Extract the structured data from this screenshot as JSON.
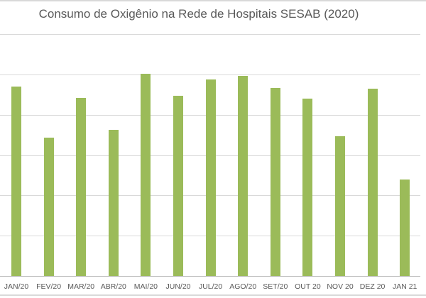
{
  "chart_data": {
    "type": "bar",
    "title": "Consumo de Oxigênio na Rede de Hospitais SESAB (2020)",
    "xlabel": "",
    "ylabel": "",
    "y_units_note": "values in gridline units (no y-axis labels visible)",
    "ylim": [
      0,
      6
    ],
    "grid": true,
    "legend": "none",
    "color": "#9bbb59",
    "categories": [
      "JAN/20",
      "FEV/20",
      "MAR/20",
      "ABR/20",
      "MAI/20",
      "JUN/20",
      "JUL/20",
      "AGO/20",
      "SET/20",
      "OUT 20",
      "NOV 20",
      "DEZ 20",
      "JAN 21"
    ],
    "values": [
      4.69,
      3.43,
      4.42,
      3.63,
      5.02,
      4.47,
      4.88,
      4.96,
      4.67,
      4.4,
      3.47,
      4.65,
      2.4
    ]
  }
}
